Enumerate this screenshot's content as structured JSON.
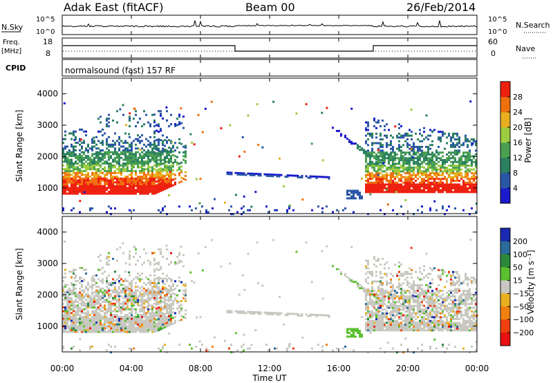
{
  "header": {
    "station": "Adak East (fitACF)",
    "beam": "Beam 00",
    "date": "26/Feb/2014"
  },
  "strip_labels": {
    "nsky": "N.Sky",
    "nsearch": "N.Search",
    "freq_line1": "Freq.",
    "freq_line2": "[MHz]",
    "nave": "Nave",
    "cpid": "CPID",
    "cpid_value": "normalsound (fast) 157 RF",
    "noise_ticks_left": [
      "10^5",
      "10^0"
    ],
    "noise_ticks_right": [
      "10^5",
      "10^0"
    ],
    "freq_ticks": [
      "18",
      "8"
    ],
    "nave_ticks": [
      "60",
      "0"
    ]
  },
  "chart_data": [
    {
      "type": "heatmap",
      "title": "",
      "ylabel": "Slant Range [km]",
      "xlabel": "Time UT",
      "x_ticks": [
        "00:00",
        "04:00",
        "08:00",
        "12:00",
        "16:00",
        "20:00",
        "00:00"
      ],
      "xlim_hours": [
        0,
        24
      ],
      "y_ticks": [
        "1000",
        "2000",
        "3000",
        "4000"
      ],
      "ylim_km": [
        180,
        4500
      ],
      "colorbar": {
        "label": "Power [dB]",
        "ticks": [
          "4",
          "8",
          "12",
          "16",
          "20",
          "24",
          "28"
        ],
        "colors": [
          "#1a1acc",
          "#2a56a6",
          "#2a8060",
          "#4aa050",
          "#9ccc40",
          "#e8b020",
          "#f07010",
          "#ee2010"
        ]
      }
    },
    {
      "type": "heatmap",
      "title": "",
      "ylabel": "Slant Range [km]",
      "xlabel": "Time UT",
      "x_ticks": [
        "00:00",
        "04:00",
        "08:00",
        "12:00",
        "16:00",
        "20:00",
        "00:00"
      ],
      "xlim_hours": [
        0,
        24
      ],
      "y_ticks": [
        "1000",
        "2000",
        "3000",
        "4000"
      ],
      "ylim_km": [
        180,
        4500
      ],
      "colorbar": {
        "label": "Velocity [m s⁻¹]",
        "ticks": [
          "200",
          "100",
          "50",
          "15",
          "−15",
          "−50",
          "−100",
          "−200"
        ],
        "colors": [
          "#1a2ab0",
          "#2a6a9a",
          "#2a8a3a",
          "#5cc030",
          "#c8c8c0",
          "#e8b020",
          "#f08010",
          "#f04010",
          "#e81010"
        ]
      }
    }
  ]
}
